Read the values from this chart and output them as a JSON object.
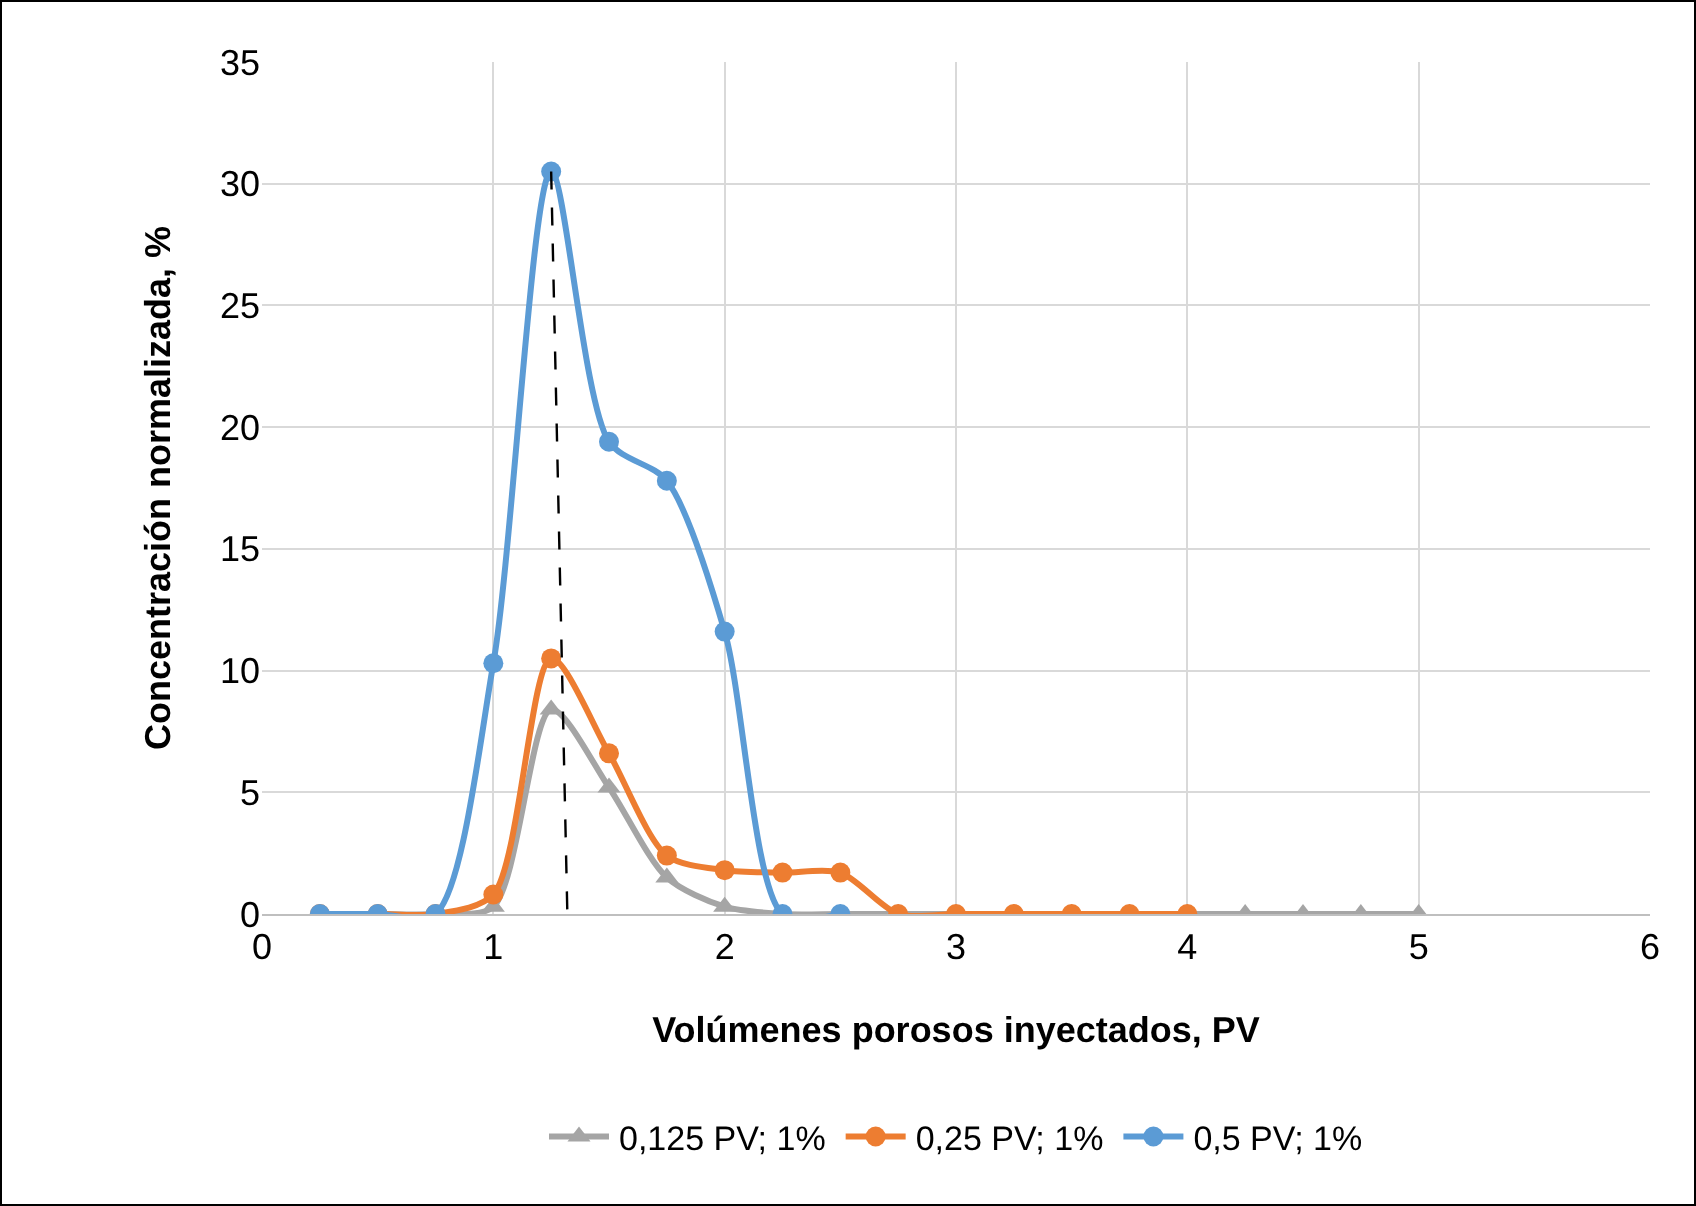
{
  "chart_data": {
    "type": "line",
    "xlabel": "Volúmenes porosos inyectados, PV",
    "ylabel": "Concentración normalizada, %",
    "xlim": [
      0,
      6
    ],
    "xticks": [
      0,
      1,
      2,
      3,
      4,
      5,
      6
    ],
    "ylim": [
      0,
      35
    ],
    "yticks": [
      0,
      5,
      10,
      15,
      20,
      25,
      30,
      35
    ],
    "grid": true,
    "legend": "bottom",
    "marker": "circle",
    "series": [
      {
        "name": "0,125 PV; 1%",
        "color": "#a5a5a5",
        "marker": "triangle",
        "x": [
          0.25,
          0.5,
          0.75,
          1,
          1.25,
          1.5,
          1.75,
          2,
          2.25,
          2.5,
          2.75,
          3,
          3.25,
          3.5,
          3.75,
          4,
          4.25,
          4.5,
          4.75,
          5
        ],
        "values": [
          0,
          0,
          0,
          0.3,
          8.4,
          5.2,
          1.5,
          0.3,
          0,
          0,
          0,
          0,
          0,
          0,
          0,
          0,
          0,
          0,
          0,
          0
        ]
      },
      {
        "name": "0,25 PV; 1%",
        "color": "#ed7d31",
        "x": [
          0.25,
          0.5,
          0.75,
          1,
          1.25,
          1.5,
          1.75,
          2,
          2.25,
          2.5,
          2.75,
          3,
          3.25,
          3.5,
          3.75,
          4
        ],
        "values": [
          0,
          0,
          0,
          0.8,
          10.5,
          6.6,
          2.4,
          1.8,
          1.7,
          1.7,
          0,
          0,
          0,
          0,
          0,
          0
        ]
      },
      {
        "name": "0,5 PV; 1%",
        "color": "#5b9bd5",
        "x": [
          0.25,
          0.5,
          0.75,
          1,
          1.25,
          1.5,
          1.75,
          2,
          2.25,
          2.5
        ],
        "values": [
          0,
          0,
          0,
          10.3,
          30.5,
          19.4,
          17.8,
          11.6,
          0,
          0
        ]
      },
      {
        "color": "#000000",
        "marker": "none",
        "line_style": "dashed",
        "x": [
          1.25,
          1.32
        ],
        "values": [
          30.5,
          0
        ]
      }
    ]
  }
}
